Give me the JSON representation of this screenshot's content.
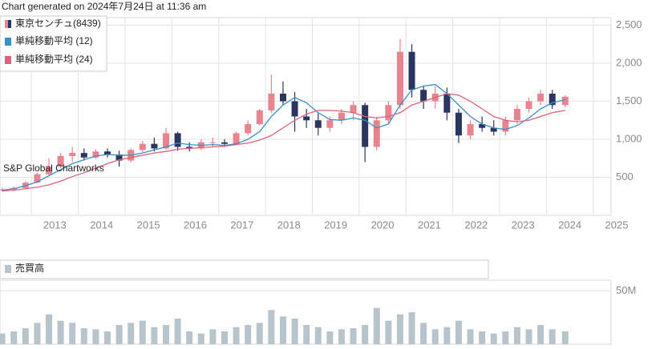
{
  "header": "Chart generated on 2024年7月24日 at 11:36 am",
  "chart_data": [
    {
      "type": "candlestick",
      "name": "東京センチュ(8439)",
      "up_color": "#e8848f",
      "down_color": "#2b3660",
      "watermark": "S&P Global Chartworks",
      "x": [
        2012.375,
        2012.625,
        2012.875,
        2013.125,
        2013.375,
        2013.625,
        2013.875,
        2014.125,
        2014.375,
        2014.625,
        2014.875,
        2015.125,
        2015.375,
        2015.625,
        2015.875,
        2016.125,
        2016.375,
        2016.625,
        2016.875,
        2017.125,
        2017.375,
        2017.625,
        2017.875,
        2018.125,
        2018.375,
        2018.625,
        2018.875,
        2019.125,
        2019.375,
        2019.625,
        2019.875,
        2020.125,
        2020.375,
        2020.625,
        2020.875,
        2021.125,
        2021.375,
        2021.625,
        2021.875,
        2022.125,
        2022.375,
        2022.625,
        2022.875,
        2023.125,
        2023.375,
        2023.625,
        2023.875,
        2024.125,
        2024.4
      ],
      "open": [
        340,
        340,
        360,
        430,
        540,
        640,
        780,
        820,
        760,
        840,
        800,
        720,
        860,
        940,
        880,
        1080,
        900,
        880,
        960,
        960,
        940,
        1080,
        1200,
        1380,
        1600,
        1500,
        1300,
        1250,
        1150,
        1250,
        1350,
        1450,
        900,
        1250,
        1450,
        2150,
        1650,
        1500,
        1600,
        1350,
        1050,
        1200,
        1150,
        1100,
        1250,
        1400,
        1500,
        1600,
        1450
      ],
      "high": [
        360,
        380,
        450,
        560,
        750,
        820,
        900,
        880,
        870,
        880,
        850,
        880,
        980,
        1020,
        1150,
        1100,
        960,
        1000,
        1020,
        1000,
        1100,
        1250,
        1400,
        1850,
        1760,
        1620,
        1400,
        1340,
        1300,
        1400,
        1500,
        1480,
        1300,
        1500,
        2320,
        2250,
        1700,
        1700,
        1680,
        1400,
        1250,
        1300,
        1250,
        1300,
        1450,
        1550,
        1650,
        1650,
        1580
      ],
      "low": [
        320,
        320,
        350,
        420,
        520,
        620,
        700,
        720,
        740,
        760,
        640,
        700,
        830,
        840,
        860,
        850,
        840,
        860,
        900,
        900,
        920,
        1050,
        1180,
        1350,
        1450,
        1100,
        1150,
        1050,
        1100,
        1200,
        1250,
        700,
        850,
        1200,
        1400,
        1550,
        1400,
        1400,
        1250,
        950,
        1000,
        1100,
        1050,
        1050,
        1200,
        1350,
        1450,
        1400,
        1420
      ],
      "close": [
        340,
        360,
        430,
        540,
        640,
        780,
        820,
        760,
        840,
        800,
        720,
        860,
        940,
        880,
        1080,
        900,
        880,
        960,
        960,
        940,
        1080,
        1200,
        1380,
        1600,
        1500,
        1300,
        1250,
        1150,
        1250,
        1350,
        1450,
        900,
        1250,
        1450,
        2150,
        1650,
        1500,
        1600,
        1350,
        1050,
        1200,
        1150,
        1100,
        1250,
        1400,
        1500,
        1600,
        1450,
        1560
      ],
      "series": [
        {
          "name": "単純移動平均 (12)",
          "color": "#3a8fc4",
          "values": [
            330,
            350,
            390,
            440,
            520,
            600,
            680,
            730,
            780,
            800,
            790,
            790,
            820,
            860,
            900,
            950,
            930,
            920,
            930,
            920,
            940,
            1000,
            1100,
            1300,
            1450,
            1550,
            1480,
            1350,
            1260,
            1250,
            1280,
            1250,
            1150,
            1200,
            1450,
            1650,
            1700,
            1720,
            1600,
            1450,
            1300,
            1200,
            1150,
            1130,
            1180,
            1280,
            1400,
            1480,
            1520
          ]
        },
        {
          "name": "単純移動平均 (24)",
          "color": "#d9647a",
          "values": [
            320,
            330,
            350,
            370,
            400,
            450,
            510,
            560,
            620,
            680,
            730,
            760,
            790,
            820,
            840,
            870,
            880,
            890,
            900,
            910,
            930,
            950,
            990,
            1050,
            1150,
            1250,
            1330,
            1380,
            1380,
            1370,
            1350,
            1300,
            1280,
            1300,
            1350,
            1450,
            1500,
            1550,
            1600,
            1580,
            1500,
            1400,
            1300,
            1250,
            1230,
            1250,
            1300,
            1350,
            1380
          ]
        }
      ],
      "xlim": [
        2012.33,
        2025.38
      ],
      "xticks": [
        2013,
        2014,
        2015,
        2016,
        2017,
        2018,
        2019,
        2020,
        2021,
        2022,
        2023,
        2024,
        2025
      ],
      "ylim": [
        0,
        2600
      ],
      "yticks": [
        {
          "value": 500,
          "label": "500"
        },
        {
          "value": 1000,
          "label": "1,000"
        },
        {
          "value": 1500,
          "label": "1,500"
        },
        {
          "value": 2000,
          "label": "2,000"
        },
        {
          "value": 2500,
          "label": "2,500"
        }
      ],
      "grid": true
    },
    {
      "type": "bar",
      "name": "売買高",
      "color": "#b8c4cc",
      "x": [
        2012.375,
        2012.625,
        2012.875,
        2013.125,
        2013.375,
        2013.625,
        2013.875,
        2014.125,
        2014.375,
        2014.625,
        2014.875,
        2015.125,
        2015.375,
        2015.625,
        2015.875,
        2016.125,
        2016.375,
        2016.625,
        2016.875,
        2017.125,
        2017.375,
        2017.625,
        2017.875,
        2018.125,
        2018.375,
        2018.625,
        2018.875,
        2019.125,
        2019.375,
        2019.625,
        2019.875,
        2020.125,
        2020.375,
        2020.625,
        2020.875,
        2021.125,
        2021.375,
        2021.625,
        2021.875,
        2022.125,
        2022.375,
        2022.625,
        2022.875,
        2023.125,
        2023.375,
        2023.625,
        2023.875,
        2024.125,
        2024.4
      ],
      "values": [
        10000000,
        12000000,
        15000000,
        20000000,
        28000000,
        22000000,
        20000000,
        15000000,
        14000000,
        12000000,
        18000000,
        20000000,
        22000000,
        16000000,
        18000000,
        24000000,
        12000000,
        10000000,
        14000000,
        12000000,
        16000000,
        18000000,
        20000000,
        32000000,
        26000000,
        24000000,
        18000000,
        16000000,
        12000000,
        14000000,
        15000000,
        18000000,
        34000000,
        22000000,
        28000000,
        30000000,
        20000000,
        14000000,
        16000000,
        22000000,
        14000000,
        12000000,
        10000000,
        12000000,
        16000000,
        14000000,
        18000000,
        14000000,
        12000000
      ],
      "xlim": [
        2012.33,
        2025.38
      ],
      "ylim": [
        0,
        60000000
      ],
      "yticks": [
        {
          "value": 50000000,
          "label": "50M"
        }
      ],
      "grid": true
    }
  ]
}
